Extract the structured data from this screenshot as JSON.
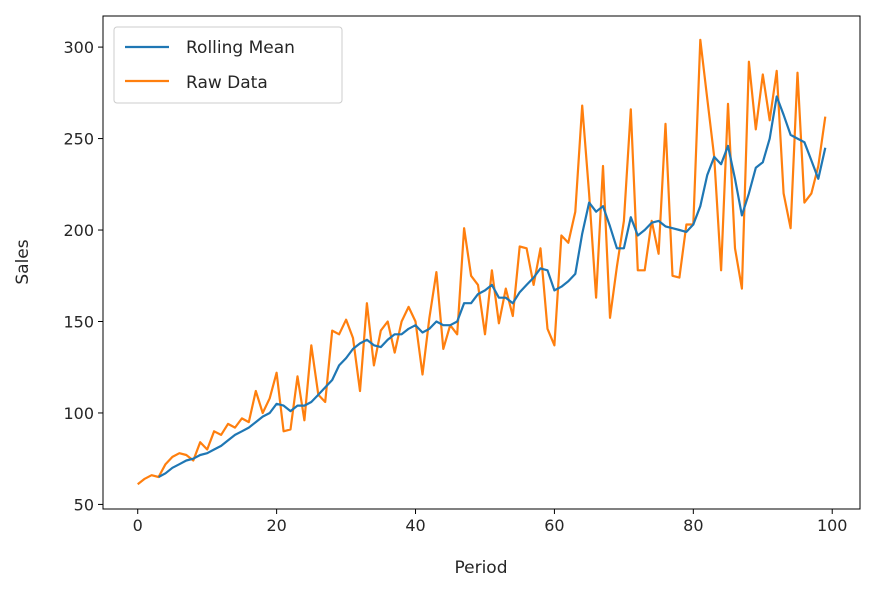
{
  "chart_data": {
    "type": "line",
    "title": "",
    "xlabel": "Period",
    "ylabel": "Sales",
    "xlim": [
      -5,
      104
    ],
    "ylim": [
      47.5,
      317
    ],
    "xticks": [
      0,
      20,
      40,
      60,
      80,
      100
    ],
    "yticks": [
      50,
      100,
      150,
      200,
      250,
      300
    ],
    "grid": false,
    "legend_position": "top-left",
    "series": [
      {
        "name": "Rolling Mean",
        "color": "#1f77b4",
        "x_start": 3,
        "values": [
          65,
          67,
          70,
          72,
          74,
          75,
          77,
          78,
          80,
          82,
          85,
          88,
          90,
          92,
          95,
          98,
          100,
          105,
          104,
          101,
          104,
          104,
          106,
          110,
          114,
          118,
          126,
          130,
          135,
          138,
          140,
          137,
          136,
          140,
          143,
          143,
          146,
          148,
          144,
          146,
          150,
          148,
          148,
          150,
          160,
          160,
          165,
          167,
          170,
          163,
          163,
          160,
          166,
          170,
          174,
          179,
          178,
          167,
          169,
          172,
          176,
          198,
          215,
          210,
          213,
          202,
          190,
          190,
          207,
          197,
          200,
          204,
          205,
          202,
          201,
          200,
          199,
          203,
          213,
          230,
          240,
          236,
          246,
          228,
          208,
          220,
          234,
          237,
          250,
          273,
          263,
          252,
          250,
          248,
          238,
          228,
          245
        ]
      },
      {
        "name": "Raw Data",
        "color": "#ff7f0e",
        "x_start": 0,
        "values": [
          61,
          64,
          66,
          65,
          72,
          76,
          78,
          77,
          74,
          84,
          80,
          90,
          88,
          94,
          92,
          97,
          95,
          112,
          100,
          108,
          122,
          90,
          91,
          120,
          96,
          137,
          110,
          106,
          145,
          143,
          151,
          141,
          112,
          160,
          126,
          145,
          150,
          133,
          150,
          158,
          150,
          121,
          152,
          177,
          135,
          148,
          143,
          201,
          175,
          170,
          143,
          178,
          149,
          168,
          153,
          191,
          190,
          170,
          190,
          146,
          137,
          197,
          193,
          210,
          268,
          220,
          163,
          235,
          152,
          180,
          205,
          266,
          178,
          178,
          205,
          187,
          258,
          175,
          174,
          203,
          203,
          304,
          272,
          240,
          178,
          269,
          190,
          168,
          292,
          255,
          285,
          260,
          287,
          220,
          201,
          286,
          215,
          220,
          235,
          262
        ]
      }
    ]
  }
}
